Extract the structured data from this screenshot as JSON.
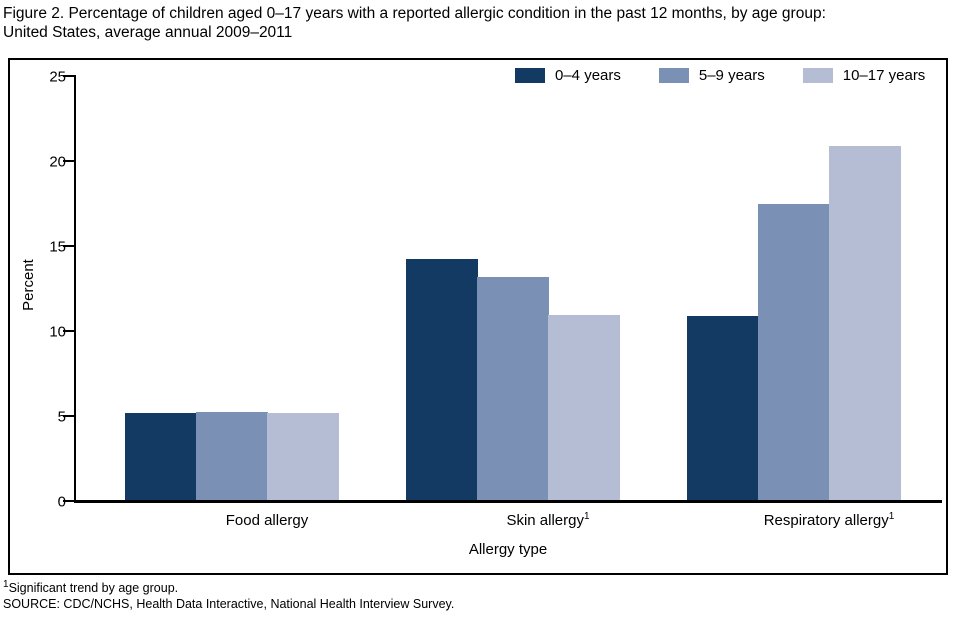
{
  "figure": {
    "title_line1": "Figure 2. Percentage of children aged 0–17 years with a reported allergic condition in the past 12 months, by age group:",
    "title_line2": "United States, average annual 2009–2011"
  },
  "footnotes": {
    "note1_superscript": "1",
    "note1_text": "Significant trend by age group.",
    "source": "SOURCE: CDC/NCHS, Health Data Interactive, National Health Interview Survey."
  },
  "chart_data": {
    "type": "bar",
    "title": "",
    "xlabel": "Allergy type",
    "ylabel": "Percent",
    "ylim": [
      0,
      25
    ],
    "yticks": [
      0,
      5,
      10,
      15,
      20,
      25
    ],
    "grid": false,
    "legend_position": "top-right-inside",
    "categories": [
      {
        "label": "Food allergy",
        "superscript": ""
      },
      {
        "label": "Skin allergy",
        "superscript": "1"
      },
      {
        "label": "Respiratory allergy",
        "superscript": "1"
      }
    ],
    "series": [
      {
        "name": "0–4 years",
        "color": "#123a63",
        "values": [
          5.1,
          14.2,
          10.8
        ]
      },
      {
        "name": "5–9 years",
        "color": "#7b90b5",
        "values": [
          5.2,
          13.1,
          17.4
        ]
      },
      {
        "name": "10–17 years",
        "color": "#b5bdd5",
        "values": [
          5.1,
          10.9,
          20.8
        ]
      }
    ]
  }
}
